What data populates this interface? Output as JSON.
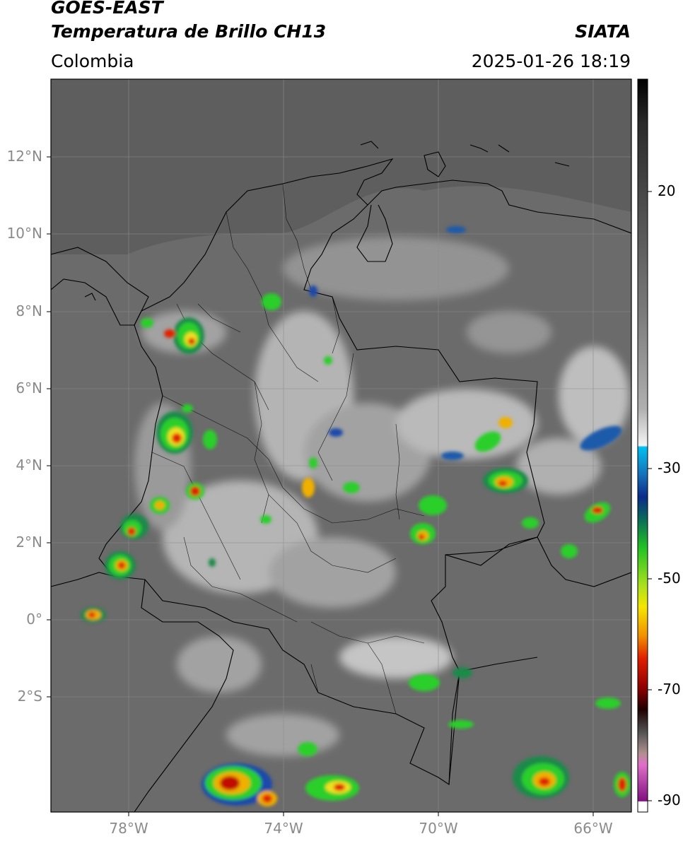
{
  "header": {
    "satellite": "GOES-EAST",
    "product": "Temperatura de Brillo CH13",
    "organization": "SIATA",
    "region": "Colombia",
    "datetime": "2025-01-26 18:19"
  },
  "axes": {
    "lat_labels": [
      "12°N",
      "10°N",
      "8°N",
      "6°N",
      "4°N",
      "2°N",
      "0°",
      "2°S"
    ],
    "lat_values": [
      12,
      10,
      8,
      6,
      4,
      2,
      0,
      -2
    ],
    "lon_labels": [
      "78°W",
      "74°W",
      "70°W",
      "66°W"
    ],
    "lon_values": [
      -78,
      -74,
      -70,
      -66
    ],
    "lon_range": [
      -80,
      -65
    ],
    "lat_range": [
      -4.9,
      14
    ]
  },
  "colorbar": {
    "tick_labels": [
      "20",
      "-30",
      "-50",
      "-70",
      "-90"
    ],
    "tick_values": [
      20,
      -30,
      -50,
      -70,
      -90
    ],
    "range": [
      -92,
      35
    ],
    "colors": {
      "warm_top": "#000000",
      "gray_mid": "#7a7a7a",
      "light": "#f2f2f2",
      "cyan": "#00b8e8",
      "navy": "#0a2a8a",
      "green": "#22c322",
      "yellow": "#f5e600",
      "orange": "#f07800",
      "red": "#d90000",
      "darkred": "#500000",
      "pink": "#e060c0",
      "purple": "#801080"
    }
  },
  "map_colors": {
    "background": "#6d6d6d",
    "ocean_north": "#5f5f5f",
    "borders": "#000000",
    "grid": "#8c8c8c"
  }
}
